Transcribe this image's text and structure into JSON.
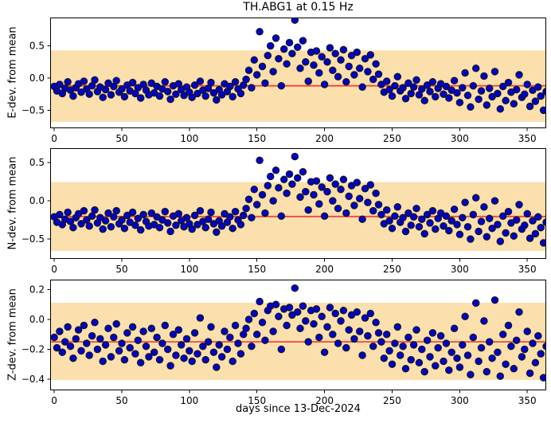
{
  "title": "TH.ABG1 at 0.15 Hz",
  "colors": {
    "band": "#fbdfad",
    "mean_line": "#f14836",
    "marker_fill": "#0000cd",
    "marker_edge": "#14142b",
    "axis": "#000000",
    "background": "#ffffff"
  },
  "x": {
    "label": "days since 13-Dec-2024",
    "lim": [
      -3,
      364
    ],
    "ticks": [
      0,
      50,
      100,
      150,
      200,
      250,
      300,
      350
    ],
    "days": [
      0,
      2,
      4,
      6,
      8,
      10,
      12,
      14,
      16,
      18,
      20,
      22,
      24,
      26,
      28,
      30,
      32,
      34,
      36,
      38,
      40,
      42,
      44,
      46,
      48,
      50,
      52,
      54,
      56,
      58,
      60,
      62,
      64,
      66,
      68,
      70,
      72,
      74,
      76,
      78,
      80,
      82,
      84,
      86,
      88,
      90,
      92,
      94,
      96,
      98,
      100,
      102,
      104,
      106,
      108,
      110,
      112,
      114,
      116,
      118,
      120,
      122,
      124,
      126,
      128,
      130,
      132,
      134,
      136,
      138,
      140,
      142,
      144,
      146,
      148,
      150,
      152,
      154,
      156,
      158,
      160,
      162,
      164,
      166,
      168,
      170,
      172,
      174,
      176,
      178,
      180,
      182,
      184,
      186,
      188,
      190,
      192,
      194,
      196,
      198,
      200,
      202,
      204,
      206,
      208,
      210,
      212,
      214,
      216,
      218,
      220,
      222,
      224,
      226,
      228,
      230,
      232,
      234,
      236,
      238,
      240,
      242,
      244,
      246,
      248,
      250,
      252,
      254,
      256,
      258,
      260,
      262,
      264,
      266,
      268,
      270,
      272,
      274,
      276,
      278,
      280,
      282,
      284,
      286,
      288,
      290,
      292,
      294,
      296,
      298,
      300,
      302,
      304,
      306,
      308,
      310,
      312,
      314,
      316,
      318,
      320,
      322,
      324,
      326,
      328,
      330,
      332,
      334,
      336,
      338,
      340,
      342,
      344,
      346,
      348,
      350,
      352,
      354,
      356,
      358,
      360,
      362,
      364
    ]
  },
  "chart_data": [
    {
      "type": "scatter",
      "name": "E",
      "ylabel": "E-dev. from mean",
      "ylim": [
        -0.78,
        0.94
      ],
      "yticks": [
        {
          "v": 0.5,
          "label": "0.5"
        },
        {
          "v": 0.0,
          "label": "0.0"
        },
        {
          "v": -0.5,
          "label": "−0.5"
        }
      ],
      "band": [
        -0.68,
        0.43
      ],
      "mean": -0.12,
      "values": [
        -0.13,
        -0.2,
        -0.1,
        -0.24,
        -0.16,
        -0.06,
        -0.19,
        -0.28,
        -0.15,
        -0.09,
        -0.22,
        -0.05,
        -0.17,
        -0.25,
        -0.12,
        -0.03,
        -0.21,
        -0.14,
        -0.3,
        -0.18,
        -0.08,
        -0.26,
        -0.13,
        -0.04,
        -0.22,
        -0.17,
        -0.29,
        -0.11,
        -0.2,
        -0.07,
        -0.24,
        -0.15,
        -0.31,
        -0.1,
        -0.19,
        -0.26,
        -0.08,
        -0.23,
        -0.13,
        -0.28,
        -0.17,
        -0.06,
        -0.21,
        -0.33,
        -0.12,
        -0.25,
        -0.09,
        -0.18,
        -0.27,
        -0.14,
        -0.22,
        -0.3,
        -0.11,
        -0.24,
        -0.05,
        -0.19,
        -0.28,
        -0.16,
        -0.07,
        -0.23,
        -0.34,
        -0.18,
        -0.26,
        -0.09,
        -0.21,
        -0.13,
        -0.29,
        -0.06,
        -0.17,
        -0.24,
        -0.11,
        -0.02,
        0.12,
        -0.15,
        0.28,
        0.05,
        0.72,
        0.18,
        -0.08,
        0.35,
        0.5,
        0.1,
        0.62,
        0.3,
        -0.12,
        0.45,
        0.22,
        0.55,
        0.38,
        0.9,
        0.48,
        0.15,
        0.58,
        0.25,
        -0.05,
        0.4,
        0.2,
        0.42,
        0.08,
        0.33,
        -0.1,
        0.25,
        0.47,
        0.12,
        0.38,
        0.02,
        0.28,
        0.44,
        -0.06,
        0.18,
        0.35,
        0.05,
        0.4,
        0.15,
        -0.14,
        0.3,
        0.1,
        0.36,
        -0.02,
        0.22,
        0.06,
        -0.1,
        -0.22,
        -0.05,
        -0.18,
        -0.28,
        -0.12,
        0.02,
        -0.2,
        -0.15,
        -0.32,
        -0.08,
        -0.24,
        -0.14,
        -0.03,
        -0.26,
        -0.17,
        -0.35,
        -0.11,
        -0.21,
        -0.06,
        -0.29,
        -0.16,
        -0.09,
        -0.25,
        -0.13,
        -0.31,
        -0.19,
        -0.04,
        -0.23,
        -0.38,
        -0.15,
        0.08,
        -0.27,
        -0.45,
        -0.12,
        0.15,
        -0.33,
        -0.2,
        0.03,
        -0.42,
        -0.16,
        -0.29,
        0.1,
        -0.24,
        -0.48,
        -0.13,
        -0.35,
        -0.07,
        -0.22,
        -0.4,
        -0.18,
        0.05,
        -0.3,
        -0.25,
        -0.1,
        -0.44,
        -0.19,
        -0.36,
        -0.14,
        -0.28,
        -0.5,
        -0.21
      ]
    },
    {
      "type": "scatter",
      "name": "N",
      "ylabel": "N-dev. from mean",
      "ylim": [
        -0.76,
        0.69
      ],
      "yticks": [
        {
          "v": 0.5,
          "label": "0.5"
        },
        {
          "v": 0.0,
          "label": "0.0"
        },
        {
          "v": -0.5,
          "label": "−0.5"
        }
      ],
      "band": [
        -0.655,
        0.245
      ],
      "mean": -0.205,
      "values": [
        -0.21,
        -0.28,
        -0.18,
        -0.31,
        -0.24,
        -0.15,
        -0.27,
        -0.35,
        -0.22,
        -0.17,
        -0.3,
        -0.13,
        -0.25,
        -0.33,
        -0.2,
        -0.12,
        -0.29,
        -0.22,
        -0.37,
        -0.26,
        -0.16,
        -0.34,
        -0.21,
        -0.13,
        -0.3,
        -0.25,
        -0.36,
        -0.19,
        -0.28,
        -0.15,
        -0.32,
        -0.23,
        -0.38,
        -0.18,
        -0.27,
        -0.33,
        -0.16,
        -0.31,
        -0.21,
        -0.35,
        -0.25,
        -0.14,
        -0.29,
        -0.4,
        -0.2,
        -0.32,
        -0.17,
        -0.26,
        -0.34,
        -0.22,
        -0.3,
        -0.37,
        -0.19,
        -0.31,
        -0.13,
        -0.27,
        -0.35,
        -0.24,
        -0.15,
        -0.3,
        -0.41,
        -0.26,
        -0.33,
        -0.17,
        -0.28,
        -0.21,
        -0.36,
        -0.14,
        -0.25,
        -0.31,
        -0.19,
        -0.1,
        0.02,
        -0.22,
        0.15,
        -0.05,
        0.53,
        0.08,
        -0.16,
        0.2,
        0.32,
        0.0,
        0.4,
        0.17,
        -0.2,
        0.28,
        0.1,
        0.35,
        0.22,
        0.58,
        0.3,
        0.05,
        0.38,
        0.12,
        -0.12,
        0.25,
        0.08,
        0.26,
        -0.04,
        0.18,
        -0.2,
        0.12,
        0.3,
        0.0,
        0.22,
        -0.1,
        0.15,
        0.28,
        -0.16,
        0.06,
        0.2,
        -0.06,
        0.24,
        0.03,
        -0.24,
        0.16,
        -0.02,
        0.21,
        -0.13,
        0.1,
        -0.05,
        -0.18,
        -0.3,
        -0.12,
        -0.26,
        -0.36,
        -0.2,
        -0.08,
        -0.28,
        -0.22,
        -0.4,
        -0.16,
        -0.32,
        -0.21,
        -0.1,
        -0.34,
        -0.24,
        -0.43,
        -0.18,
        -0.29,
        -0.13,
        -0.37,
        -0.23,
        -0.16,
        -0.33,
        -0.2,
        -0.39,
        -0.26,
        -0.11,
        -0.31,
        -0.44,
        -0.22,
        -0.02,
        -0.34,
        -0.5,
        -0.18,
        0.04,
        -0.4,
        -0.27,
        -0.08,
        -0.47,
        -0.23,
        -0.36,
        0.0,
        -0.31,
        -0.53,
        -0.2,
        -0.42,
        -0.14,
        -0.29,
        -0.46,
        -0.25,
        -0.05,
        -0.37,
        -0.32,
        -0.17,
        -0.49,
        -0.26,
        -0.43,
        -0.21,
        -0.35,
        -0.55,
        -0.28
      ]
    },
    {
      "type": "scatter",
      "name": "Z",
      "ylabel": "Z-dev. from mean",
      "ylim": [
        -0.475,
        0.267
      ],
      "yticks": [
        {
          "v": 0.2,
          "label": "0.2"
        },
        {
          "v": 0.0,
          "label": "0.0"
        },
        {
          "v": -0.2,
          "label": "−0.2"
        },
        {
          "v": -0.4,
          "label": "−0.4"
        }
      ],
      "band": [
        -0.405,
        0.112
      ],
      "mean": -0.15,
      "values": [
        -0.12,
        -0.19,
        -0.08,
        -0.22,
        -0.15,
        -0.05,
        -0.18,
        -0.26,
        -0.13,
        -0.07,
        -0.21,
        -0.04,
        -0.16,
        -0.24,
        -0.11,
        -0.02,
        -0.2,
        -0.13,
        -0.28,
        -0.17,
        -0.06,
        -0.25,
        -0.12,
        -0.03,
        -0.21,
        -0.16,
        -0.27,
        -0.09,
        -0.19,
        -0.05,
        -0.23,
        -0.14,
        -0.29,
        -0.08,
        -0.18,
        -0.25,
        -0.06,
        -0.22,
        -0.12,
        -0.27,
        -0.16,
        -0.04,
        -0.2,
        -0.31,
        -0.1,
        -0.24,
        -0.07,
        -0.17,
        -0.26,
        -0.13,
        -0.21,
        -0.28,
        -0.09,
        -0.23,
        0.01,
        -0.18,
        -0.27,
        -0.15,
        -0.05,
        -0.22,
        -0.32,
        -0.17,
        -0.25,
        -0.08,
        -0.2,
        -0.12,
        -0.28,
        -0.04,
        -0.16,
        -0.23,
        -0.1,
        -0.06,
        0.0,
        -0.18,
        0.04,
        -0.1,
        0.12,
        -0.02,
        -0.14,
        0.06,
        0.09,
        -0.08,
        0.1,
        0.02,
        -0.2,
        0.07,
        -0.04,
        0.08,
        0.03,
        0.21,
        0.05,
        -0.06,
        0.09,
        -0.01,
        -0.15,
        0.06,
        -0.03,
        0.07,
        -0.12,
        0.02,
        -0.22,
        -0.05,
        0.08,
        -0.1,
        0.04,
        -0.16,
        -0.01,
        0.06,
        -0.19,
        -0.07,
        0.03,
        -0.13,
        0.05,
        -0.08,
        -0.24,
        0.01,
        -0.11,
        0.04,
        -0.18,
        -0.02,
        -0.09,
        -0.15,
        -0.26,
        -0.1,
        -0.21,
        -0.3,
        -0.16,
        -0.05,
        -0.24,
        -0.18,
        -0.33,
        -0.12,
        -0.27,
        -0.17,
        -0.07,
        -0.29,
        -0.2,
        -0.35,
        -0.14,
        -0.25,
        -0.09,
        -0.31,
        -0.19,
        -0.11,
        -0.28,
        -0.16,
        -0.34,
        -0.22,
        -0.06,
        -0.26,
        -0.32,
        -0.17,
        0.02,
        -0.24,
        -0.37,
        -0.12,
        0.11,
        -0.28,
        -0.19,
        -0.01,
        -0.35,
        -0.15,
        -0.26,
        0.13,
        -0.22,
        -0.38,
        -0.1,
        -0.3,
        -0.04,
        -0.18,
        -0.33,
        -0.14,
        0.05,
        -0.25,
        -0.2,
        -0.08,
        -0.36,
        -0.16,
        -0.29,
        -0.11,
        -0.23,
        -0.39,
        -0.18
      ]
    }
  ]
}
